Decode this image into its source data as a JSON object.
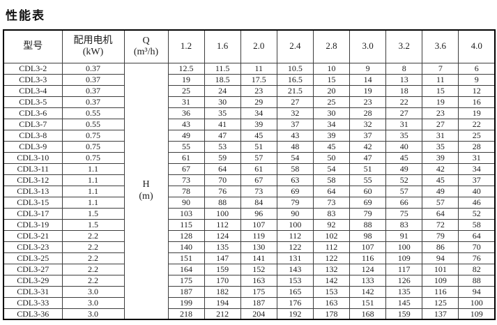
{
  "page": {
    "title": "性能表"
  },
  "table": {
    "headers": {
      "model": "型号",
      "motor_line1": "配用电机",
      "motor_line2": "(kW)",
      "q_line1": "Q",
      "q_line2": "(m³/h)",
      "h_line1": "H",
      "h_line2": "(m)"
    },
    "flow_columns": [
      "1.2",
      "1.6",
      "2.0",
      "2.4",
      "2.8",
      "3.0",
      "3.2",
      "3.6",
      "4.0"
    ],
    "rows": [
      {
        "model": "CDL3-2",
        "kw": "0.37",
        "values": [
          "12.5",
          "11.5",
          "11",
          "10.5",
          "10",
          "9",
          "8",
          "7",
          "6"
        ]
      },
      {
        "model": "CDL3-3",
        "kw": "0.37",
        "values": [
          "19",
          "18.5",
          "17.5",
          "16.5",
          "15",
          "14",
          "13",
          "11",
          "9"
        ]
      },
      {
        "model": "CDL3-4",
        "kw": "0.37",
        "values": [
          "25",
          "24",
          "23",
          "21.5",
          "20",
          "19",
          "18",
          "15",
          "12"
        ]
      },
      {
        "model": "CDL3-5",
        "kw": "0.37",
        "values": [
          "31",
          "30",
          "29",
          "27",
          "25",
          "23",
          "22",
          "19",
          "16"
        ]
      },
      {
        "model": "CDL3-6",
        "kw": "0.55",
        "values": [
          "36",
          "35",
          "34",
          "32",
          "30",
          "28",
          "27",
          "23",
          "19"
        ]
      },
      {
        "model": "CDL3-7",
        "kw": "0.55",
        "values": [
          "43",
          "41",
          "39",
          "37",
          "34",
          "32",
          "31",
          "27",
          "22"
        ]
      },
      {
        "model": "CDL3-8",
        "kw": "0.75",
        "values": [
          "49",
          "47",
          "45",
          "43",
          "39",
          "37",
          "35",
          "31",
          "25"
        ]
      },
      {
        "model": "CDL3-9",
        "kw": "0.75",
        "values": [
          "55",
          "53",
          "51",
          "48",
          "45",
          "42",
          "40",
          "35",
          "28"
        ]
      },
      {
        "model": "CDL3-10",
        "kw": "0.75",
        "values": [
          "61",
          "59",
          "57",
          "54",
          "50",
          "47",
          "45",
          "39",
          "31"
        ]
      },
      {
        "model": "CDL3-11",
        "kw": "1.1",
        "values": [
          "67",
          "64",
          "61",
          "58",
          "54",
          "51",
          "49",
          "42",
          "34"
        ]
      },
      {
        "model": "CDL3-12",
        "kw": "1.1",
        "values": [
          "73",
          "70",
          "67",
          "63",
          "58",
          "55",
          "52",
          "45",
          "37"
        ]
      },
      {
        "model": "CDL3-13",
        "kw": "1.1",
        "values": [
          "78",
          "76",
          "73",
          "69",
          "64",
          "60",
          "57",
          "49",
          "40"
        ]
      },
      {
        "model": "CDL3-15",
        "kw": "1.1",
        "values": [
          "90",
          "88",
          "84",
          "79",
          "73",
          "69",
          "66",
          "57",
          "46"
        ]
      },
      {
        "model": "CDL3-17",
        "kw": "1.5",
        "values": [
          "103",
          "100",
          "96",
          "90",
          "83",
          "79",
          "75",
          "64",
          "52"
        ]
      },
      {
        "model": "CDL3-19",
        "kw": "1.5",
        "values": [
          "115",
          "112",
          "107",
          "100",
          "92",
          "88",
          "83",
          "72",
          "58"
        ]
      },
      {
        "model": "CDL3-21",
        "kw": "2.2",
        "values": [
          "128",
          "124",
          "119",
          "112",
          "102",
          "98",
          "91",
          "79",
          "64"
        ]
      },
      {
        "model": "CDL3-23",
        "kw": "2.2",
        "values": [
          "140",
          "135",
          "130",
          "122",
          "112",
          "107",
          "100",
          "86",
          "70"
        ]
      },
      {
        "model": "CDL3-25",
        "kw": "2.2",
        "values": [
          "151",
          "147",
          "141",
          "131",
          "122",
          "116",
          "109",
          "94",
          "76"
        ]
      },
      {
        "model": "CDL3-27",
        "kw": "2.2",
        "values": [
          "164",
          "159",
          "152",
          "143",
          "132",
          "124",
          "117",
          "101",
          "82"
        ]
      },
      {
        "model": "CDL3-29",
        "kw": "2.2",
        "values": [
          "175",
          "170",
          "163",
          "153",
          "142",
          "133",
          "126",
          "109",
          "88"
        ]
      },
      {
        "model": "CDL3-31",
        "kw": "3.0",
        "values": [
          "187",
          "182",
          "175",
          "165",
          "153",
          "142",
          "135",
          "116",
          "94"
        ]
      },
      {
        "model": "CDL3-33",
        "kw": "3.0",
        "values": [
          "199",
          "194",
          "187",
          "176",
          "163",
          "151",
          "145",
          "125",
          "100"
        ]
      },
      {
        "model": "CDL3-36",
        "kw": "3.0",
        "values": [
          "218",
          "212",
          "204",
          "192",
          "178",
          "168",
          "159",
          "137",
          "109"
        ]
      }
    ]
  },
  "colors": {
    "background": "#ffffff",
    "outer_border": "#000000",
    "grid": "#3c3c3c",
    "text": "#1c1c1c"
  }
}
